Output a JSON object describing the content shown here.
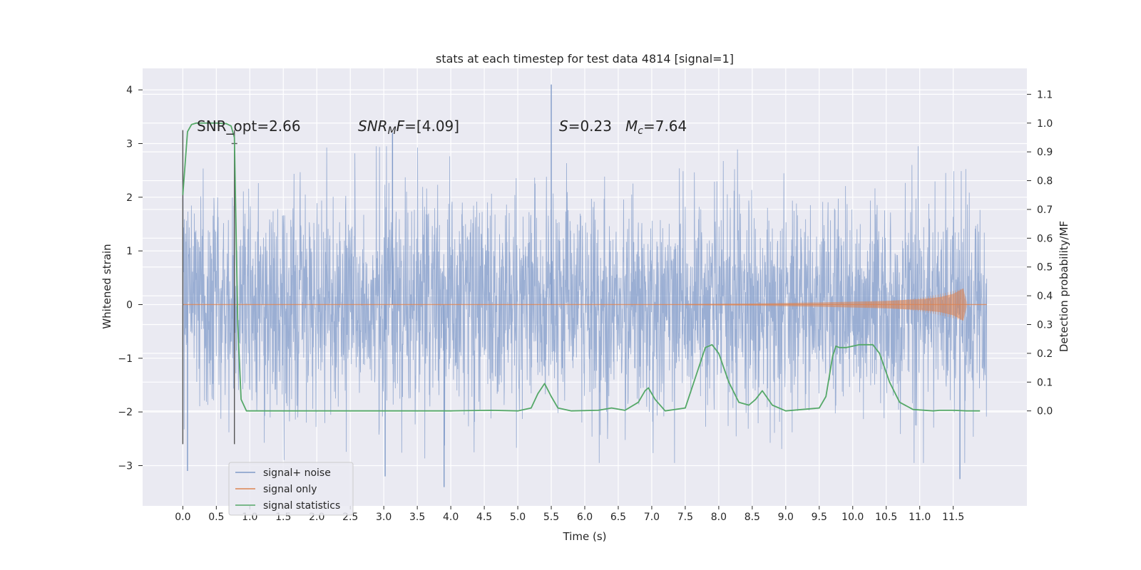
{
  "chart_data": {
    "type": "line",
    "title": "stats at each timestep for test data 4814 [signal=1]",
    "xlabel": "Time (s)",
    "ylabel": "Whitened strain",
    "y2label": "Detection probability/MF",
    "xlim": [
      -0.6,
      12.6
    ],
    "ylim": [
      -3.75,
      4.4
    ],
    "y2lim": [
      -0.33,
      1.19
    ],
    "x_ticks": [
      "0.0",
      "0.5",
      "1.0",
      "1.5",
      "2.0",
      "2.5",
      "3.0",
      "3.5",
      "4.0",
      "4.5",
      "5.0",
      "5.5",
      "6.0",
      "6.5",
      "7.0",
      "7.5",
      "8.0",
      "8.5",
      "9.0",
      "9.5",
      "10.0",
      "10.5",
      "11.0",
      "11.5"
    ],
    "y_ticks": [
      "−3",
      "−2",
      "−1",
      "0",
      "1",
      "2",
      "3",
      "4"
    ],
    "y2_ticks": [
      "0.0",
      "0.1",
      "0.2",
      "0.3",
      "0.4",
      "0.5",
      "0.6",
      "0.7",
      "0.8",
      "0.9",
      "1.0",
      "1.1"
    ],
    "grid": true,
    "legend_position": "lower-left",
    "annotations": {
      "snr_opt": "SNR_opt=2.66",
      "snr_mf_label": "SNR",
      "snr_mf_sub": "M",
      "snr_mf_suffix": "F",
      "snr_mf_value": "=[4.09]",
      "s_label": "S",
      "s_value": "=0.23",
      "mc_label": "M",
      "mc_sub": "c",
      "mc_value": "=7.64"
    },
    "series": [
      {
        "name": "signal+ noise",
        "color": "#7f9ac8",
        "axis": "left",
        "x_range": [
          0.0,
          12.0
        ],
        "typical_envelope": [
          -2.0,
          2.5
        ],
        "peaks": [
          {
            "x": 5.5,
            "y": 4.1
          },
          {
            "x": 3.13,
            "y": 3.2
          },
          {
            "x": 3.9,
            "y": -3.4
          },
          {
            "x": 11.6,
            "y": -3.25
          },
          {
            "x": 3.02,
            "y": -3.2
          },
          {
            "x": 0.07,
            "y": -3.1
          }
        ]
      },
      {
        "name": "signal only",
        "color": "#dd8452",
        "axis": "left",
        "x": [
          7.5,
          8.5,
          9.5,
          10.5,
          11.0,
          11.3,
          11.5,
          11.65,
          11.7
        ],
        "amplitude": [
          0.01,
          0.02,
          0.04,
          0.07,
          0.1,
          0.14,
          0.2,
          0.3,
          0.05
        ]
      },
      {
        "name": "signal statistics",
        "color": "#55a868",
        "axis": "right",
        "x": [
          0.0,
          0.07,
          0.13,
          0.2,
          0.3,
          0.5,
          0.65,
          0.72,
          0.77,
          0.82,
          0.87,
          0.95,
          1.2,
          2.0,
          3.0,
          4.0,
          4.6,
          5.0,
          5.2,
          5.3,
          5.4,
          5.5,
          5.6,
          5.8,
          6.2,
          6.4,
          6.6,
          6.8,
          6.9,
          6.95,
          7.05,
          7.2,
          7.5,
          7.7,
          7.8,
          7.9,
          8.0,
          8.15,
          8.3,
          8.45,
          8.55,
          8.65,
          8.8,
          9.0,
          9.5,
          9.6,
          9.7,
          9.75,
          9.8,
          9.9,
          10.1,
          10.3,
          10.4,
          10.55,
          10.7,
          10.9,
          11.2,
          11.3,
          11.5,
          11.7,
          11.9
        ],
        "y": [
          0.75,
          0.97,
          0.995,
          1.0,
          1.0,
          1.0,
          0.998,
          0.99,
          0.95,
          0.3,
          0.04,
          0.0,
          0.0,
          0.0,
          0.0,
          0.0,
          0.002,
          0.0,
          0.01,
          0.06,
          0.095,
          0.05,
          0.01,
          0.0,
          0.002,
          0.01,
          0.002,
          0.03,
          0.07,
          0.08,
          0.04,
          0.0,
          0.01,
          0.15,
          0.22,
          0.23,
          0.2,
          0.1,
          0.03,
          0.02,
          0.04,
          0.07,
          0.02,
          0.0,
          0.01,
          0.05,
          0.19,
          0.225,
          0.22,
          0.22,
          0.23,
          0.23,
          0.2,
          0.1,
          0.03,
          0.005,
          0.0,
          0.002,
          0.002,
          0.0,
          0.0
        ]
      }
    ],
    "vertical_markers": [
      {
        "x": 0.0,
        "y_top": 3.25,
        "y_bottom": -2.6
      },
      {
        "x": 0.77,
        "y_top": 3.25,
        "y_bottom": -2.6
      }
    ],
    "mf_marker": {
      "x": 0.77,
      "y": 3.0
    }
  }
}
